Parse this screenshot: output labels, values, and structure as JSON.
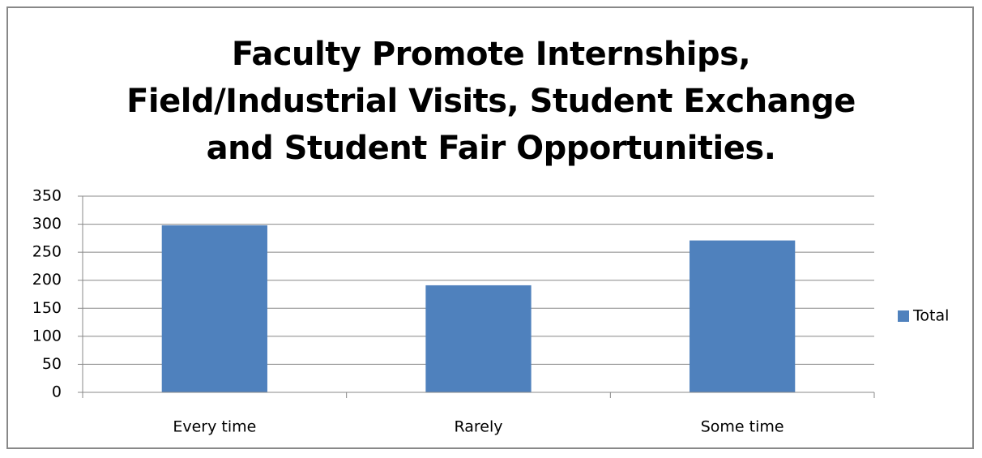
{
  "chart_data": {
    "type": "bar",
    "title": "Faculty Promote Internships, Field/Industrial Visits, Student Exchange and Student Fair Opportunities.",
    "categories": [
      "Every time",
      "Rarely",
      "Some time"
    ],
    "series": [
      {
        "name": "Total",
        "color": "#4f81bd",
        "values": [
          298,
          191,
          271
        ]
      }
    ],
    "ylim": [
      0,
      350
    ],
    "yticks": [
      0,
      50,
      100,
      150,
      200,
      250,
      300,
      350
    ],
    "grid": true,
    "legend": "right"
  }
}
